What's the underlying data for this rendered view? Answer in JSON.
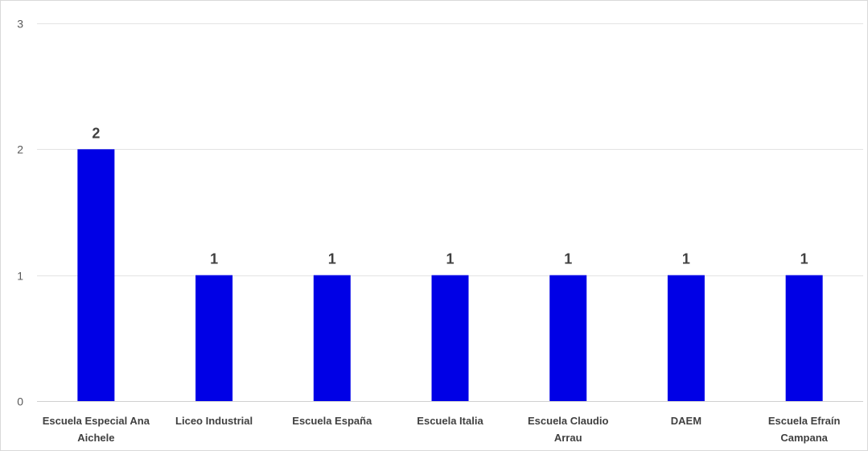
{
  "chart_data": {
    "type": "bar",
    "title": "",
    "xlabel": "",
    "ylabel": "",
    "categories": [
      "Escuela Especial Ana Aichele",
      "Liceo Industrial",
      "Escuela España",
      "Escuela Italia",
      "Escuela Claudio Arrau",
      "DAEM",
      "Escuela Efraín Campana"
    ],
    "category_lines": [
      [
        "Escuela Especial Ana",
        "Aichele"
      ],
      [
        "Liceo Industrial"
      ],
      [
        "Escuela España"
      ],
      [
        "Escuela Italia"
      ],
      [
        "Escuela Claudio",
        "Arrau"
      ],
      [
        "DAEM"
      ],
      [
        "Escuela Efraín",
        "Campana"
      ]
    ],
    "values": [
      2,
      1,
      1,
      1,
      1,
      1,
      1
    ],
    "data_labels": [
      "2",
      "1",
      "1",
      "1",
      "1",
      "1",
      "1"
    ],
    "ylim": [
      0,
      3
    ],
    "yticks": [
      0,
      1,
      2,
      3
    ],
    "grid": true,
    "legend": "none",
    "bar_color": "#0000e6"
  }
}
